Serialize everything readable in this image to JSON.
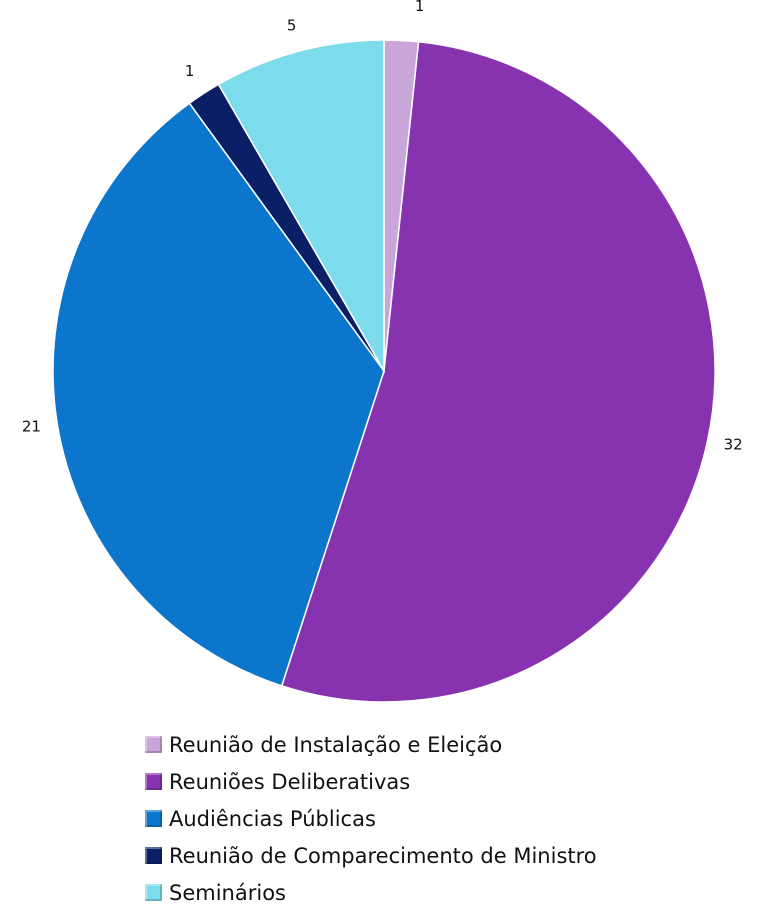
{
  "chart_data": {
    "type": "pie",
    "title": "",
    "slices": [
      {
        "label": "Reunião de Instalação e Eleição",
        "value": 1,
        "color": "#C9A6D9"
      },
      {
        "label": "Reuniões Deliberativas",
        "value": 32,
        "color": "#8733B0"
      },
      {
        "label": "Audiências Públicas",
        "value": 21,
        "color": "#0C76CC"
      },
      {
        "label": "Reunião de Comparecimento de Ministro",
        "value": 1,
        "color": "#0A1F66"
      },
      {
        "label": "Seminários",
        "value": 5,
        "color": "#7DDCEB"
      }
    ],
    "legend_position": "bottom",
    "data_labels": true,
    "start_angle": "top",
    "direction": "clockwise"
  }
}
